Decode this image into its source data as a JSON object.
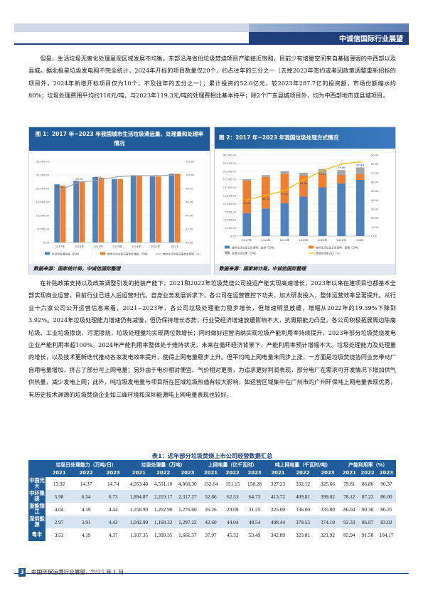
{
  "header": {
    "title": "中诚信国际行业展望"
  },
  "paragraphs": {
    "p1": "但是，生活垃圾无害化处理呈现区域发展不均衡。东部沿海省份垃圾焚烧项目产能接近饱和，目前少有增量空间来自基础薄弱的中西部以及县城。据北极星垃圾发电网不完全统计，2024年开标的项目数量仅20个，约占往年的三分之一（去掉2023年签约或者因政策调整重新招标的项目外，2024年新增开标项目仅为10个，不及往年的五分之一）；累计投资约52.6亿元，较2023年287.7亿的投资额，市场份额缩水约80%；垃圾处理费用平均约118元/吨，与2023年119.3元/吨的处理费相比基本持平；除2个广东县城项目外，均为中西部地市或县城项目。",
    "p2": "在补贴政策支持以及政策调整引发的抢装产能下，2021和2022年垃圾焚烧公司投运产能实现高速增长，2023年以来在建项目也都基本全部实现商业运营，目前行业已进入后运营时代。自身业务发展诉求下，各公司在运营管控下功夫，加大研发投入，整体运营效率显著提升。从行业十六家公司公开运营信息来看，2021~2023年，各公司垃圾处理能力稳步增长，但增速明显放缓，增幅从2022年的19.39%下降到3.92%。2024年垃圾处理能力增速仍有减慢，但仍保持增长态势；行业受经济增速放缓影响不大，抗周期能力凸显，各公司积极拓展周边陈腐垃圾、工业垃圾掺烧、污泥掺烧，垃圾处理量均实现两位数增长；同时做好运营消纳实现垃圾产能利用率持续提升，2023年部分垃圾焚烧发电企业产能利用率超100%。2024年产能利用率整体处于维持状况，未来在循环经济背景下，产能利用率预计增幅不大。垃圾处理能力及处理量的增长，以及技术更新迭代推动各家发电效率提升，使得上网电量稳步上升。但平均吨上网电量未同步上涨，一方面是垃圾焚烧协同业务带动厂自用电量增加，挤占了部分可上网电量；另外由于电价相对便宜、气价相对更贵，为追求更好利润表现，部分电厂在需求可开发情况下增加供气供热量，减少发电上网；此外，吨垃圾发电量与项目所在区域垃圾热值有较大影响，如运营区域集中在广州市的广州环保吨上网电量表现优秀，有历史技术渊源的垃圾焚烧企业如三峰环境和深圳能源吨上网电量表现也较好。"
  },
  "figure1": {
    "title": "图 1：2017 年~2023 年我国城市生活垃圾清运量、处理量和处理率情况",
    "source": "数据来源：国家统计局，中诚信国际整理"
  },
  "figure2": {
    "title": "图 2：2017 年~2023 年我国垃圾处理方式情况",
    "source": "数据来源：国家统计局，中诚信国际整理"
  },
  "chart_data": [
    {
      "type": "bar",
      "categories": [
        "2017年",
        "2018年",
        "2019年",
        "2020年",
        "2021年",
        "2022年",
        "2023"
      ],
      "series": [
        {
          "name": "生活垃圾清运量（万吨）",
          "values": [
            21521,
            22802,
            24206,
            23512,
            24869,
            24445,
            25408
          ],
          "color": "#4f81bd"
        },
        {
          "name": "城市生活垃圾无害化处理量（万吨）",
          "values": [
            21034,
            22565,
            24013,
            23452,
            24839,
            24419,
            25400
          ],
          "color": "#f08030"
        },
        {
          "name": "城市生活垃圾无害化处理率（%）",
          "type": "line",
          "values": [
            97.74,
            98.96,
            99.2,
            99.74,
            99.88,
            99.9,
            99.95
          ],
          "color": "#a5a5a5"
        }
      ],
      "yticks_left": [
        "0.00",
        "5,000.00",
        "10,000.00",
        "15,000.00",
        "20,000.00",
        "25,000.00",
        "30,000.00"
      ],
      "ylim_left": [
        0,
        30000
      ],
      "yticks_right": [
        "90.00",
        "92.00",
        "94.00",
        "96.00",
        "98.00",
        "100.00",
        "102.00"
      ],
      "ylim_right": [
        90,
        102
      ],
      "data_labels": [
        "97.74",
        "98.96",
        "99.2"
      ]
    },
    {
      "type": "bar",
      "categories": [
        "2017年",
        "2018年",
        "2019年",
        "2020年",
        "2021年",
        "2022年",
        "2023"
      ],
      "stacked": true,
      "series": [
        {
          "name": "城市生活垃圾卫生填埋：焚烧（万吨）",
          "values": [
            8463,
            10185,
            12174,
            14608,
            18020,
            19502,
            20800
          ],
          "color": "#4f81bd"
        },
        {
          "name": "城市生活垃圾卫生填埋：填埋（万吨）",
          "values": [
            12038,
            11706,
            10948,
            7772,
            5208,
            3153,
            2100
          ],
          "color": "#f08030"
        },
        {
          "name": "其他方式处理（万吨）",
          "values": [
            533,
            674,
            891,
            1072,
            1611,
            1764,
            2500
          ],
          "color": "#a5a5a5"
        },
        {
          "name": "焚烧处理率占比（%）",
          "type": "line",
          "values": [
            40.24,
            45.14,
            50.47,
            62.28,
            72.54,
            79.86,
            82.49
          ],
          "color": "#f5b800"
        }
      ],
      "yticks_left": [
        "0.00",
        "2,500.00",
        "5,000.00",
        "7,500.00",
        "10,000.00",
        "12,500.00",
        "15,000.00",
        "17,500.00",
        "20,000.00",
        "25,000.00",
        "30,000.00"
      ],
      "ylim_left": [
        0,
        30000
      ],
      "yticks_right": [
        "0.00",
        "10.00",
        "20.00",
        "30.00",
        "40.00",
        "50.00",
        "60.00",
        "70.00",
        "80.00",
        "90.00"
      ],
      "ylim_right": [
        0,
        90
      ]
    }
  ],
  "table": {
    "title": "表1：近年部分垃圾焚烧上市公司经营数据汇总",
    "groups": [
      "垃圾日处理能力（万吨/日）",
      "垃圾处理量（万吨）",
      "上网电量（亿千瓦时）",
      "吨上网电量（千瓦时/吨）",
      "产能利用率（%）"
    ],
    "years": [
      "2021",
      "2022",
      "2023"
    ],
    "rows": [
      {
        "name": "中国光大",
        "vals": [
          "13.92",
          "14.37",
          "14.74",
          "4,053.40",
          "4,551.10",
          "4,860.30",
          "132.64",
          "151.15",
          "158.28",
          "327.23",
          "332.12",
          "325.66",
          "79.81",
          "86.80",
          "90.37"
        ]
      },
      {
        "name": "中环集团",
        "vals": [
          "5.98",
          "6.54",
          "6.73",
          "1,894.87",
          "2,219.17",
          "2,317.27",
          "52.86",
          "62.53",
          "64.73",
          "413.72",
          "409.81",
          "399.02",
          "78.12",
          "87.22",
          "86.00"
        ]
      },
      {
        "name": "浙能锦江",
        "vals": [
          "4.04",
          "4.19",
          "4.44",
          "1,158.90",
          "1,262.90",
          "1,276.60",
          "26.26",
          "29.09",
          "31.25",
          "325.00",
          "336.00",
          "335.00",
          "86.04",
          "90.30",
          "86.25"
        ]
      },
      {
        "name": "深圳能源",
        "vals": [
          "2.97",
          "3.91",
          "4.43",
          "1,042.99",
          "1,160.32",
          "1,297.22",
          "42.60",
          "44.04",
          "48.54",
          "408.44",
          "379.55",
          "374.18",
          "92.33",
          "86.87",
          "83.02"
        ]
      },
      {
        "name": "粤丰",
        "vals": [
          "3.53",
          "4.19",
          "4.37",
          "1,107.35",
          "1,399.35",
          "1,661.57",
          "37.97",
          "45.32",
          "53.49",
          "342.89",
          "323.81",
          "321.92",
          "85.94",
          "91.50",
          "104.17"
        ]
      }
    ]
  },
  "footer": {
    "page": "3",
    "text": "中国环保运营行业展望，2025 年 1 月"
  }
}
